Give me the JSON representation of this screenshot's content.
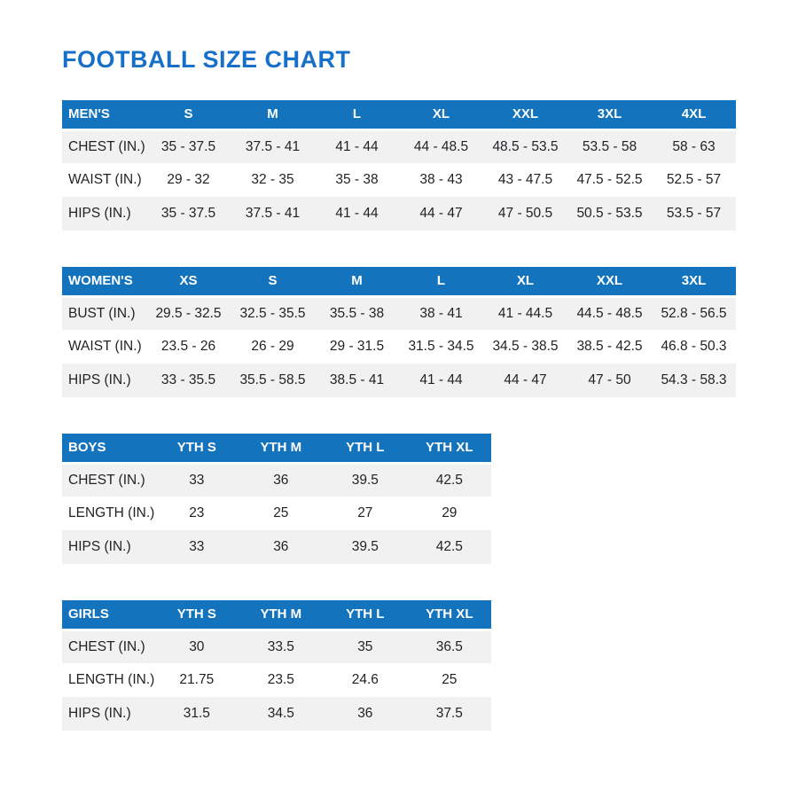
{
  "page_title": "FOOTBALL SIZE CHART",
  "colors": {
    "title_blue": "#1670c9",
    "header_blue": "#1373bd",
    "stripe_gray": "#f1f1f2",
    "text_dark": "#1f2124",
    "header_text": "#ffffff"
  },
  "tables": [
    {
      "group": "MEN'S",
      "sizes": [
        "S",
        "M",
        "L",
        "XL",
        "XXL",
        "3XL",
        "4XL"
      ],
      "rows": [
        {
          "label": "CHEST (IN.)",
          "values": [
            "35 - 37.5",
            "37.5 - 41",
            "41 - 44",
            "44 - 48.5",
            "48.5 - 53.5",
            "53.5 - 58",
            "58 - 63"
          ]
        },
        {
          "label": "WAIST (IN.)",
          "values": [
            "29 - 32",
            "32 - 35",
            "35 - 38",
            "38 - 43",
            "43 - 47.5",
            "47.5 - 52.5",
            "52.5 - 57"
          ]
        },
        {
          "label": "HIPS (IN.)",
          "values": [
            "35 - 37.5",
            "37.5 - 41",
            "41 - 44",
            "44 - 47",
            "47 - 50.5",
            "50.5 - 53.5",
            "53.5 - 57"
          ]
        }
      ]
    },
    {
      "group": "WOMEN'S",
      "sizes": [
        "XS",
        "S",
        "M",
        "L",
        "XL",
        "XXL",
        "3XL"
      ],
      "rows": [
        {
          "label": "BUST (IN.)",
          "values": [
            "29.5 - 32.5",
            "32.5 - 35.5",
            "35.5 - 38",
            "38 - 41",
            "41 - 44.5",
            "44.5 - 48.5",
            "52.8 - 56.5"
          ]
        },
        {
          "label": "WAIST (IN.)",
          "values": [
            "23.5 - 26",
            "26 - 29",
            "29 - 31.5",
            "31.5 - 34.5",
            "34.5 - 38.5",
            "38.5 - 42.5",
            "46.8 - 50.3"
          ]
        },
        {
          "label": "HIPS (IN.)",
          "values": [
            "33 - 35.5",
            "35.5 - 58.5",
            "38.5 - 41",
            "41 - 44",
            "44 - 47",
            "47 - 50",
            "54.3 - 58.3"
          ]
        }
      ]
    },
    {
      "group": "BOYS",
      "sizes": [
        "YTH S",
        "YTH M",
        "YTH L",
        "YTH XL"
      ],
      "rows": [
        {
          "label": "CHEST (IN.)",
          "values": [
            "33",
            "36",
            "39.5",
            "42.5"
          ]
        },
        {
          "label": "LENGTH (IN.)",
          "values": [
            "23",
            "25",
            "27",
            "29"
          ]
        },
        {
          "label": "HIPS (IN.)",
          "values": [
            "33",
            "36",
            "39.5",
            "42.5"
          ]
        }
      ]
    },
    {
      "group": "GIRLS",
      "sizes": [
        "YTH S",
        "YTH M",
        "YTH L",
        "YTH XL"
      ],
      "rows": [
        {
          "label": "CHEST (IN.)",
          "values": [
            "30",
            "33.5",
            "35",
            "36.5"
          ]
        },
        {
          "label": "LENGTH (IN.)",
          "values": [
            "21.75",
            "23.5",
            "24.6",
            "25"
          ]
        },
        {
          "label": "HIPS (IN.)",
          "values": [
            "31.5",
            "34.5",
            "36",
            "37.5"
          ]
        }
      ]
    }
  ]
}
